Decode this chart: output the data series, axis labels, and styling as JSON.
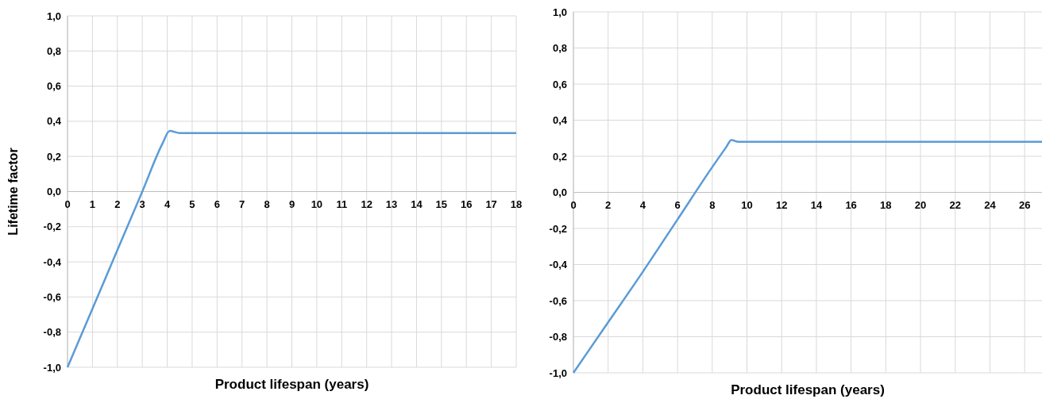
{
  "chart_data": [
    {
      "type": "line",
      "xlabel": "Product lifespan (years)",
      "ylabel": "Lifetime factor",
      "xlim": [
        0,
        18
      ],
      "ylim": [
        -1,
        1
      ],
      "xticks": [
        0,
        1,
        2,
        3,
        4,
        5,
        6,
        7,
        8,
        9,
        10,
        11,
        12,
        13,
        14,
        15,
        16,
        17,
        18
      ],
      "yticks": [
        {
          "value": -1,
          "label": "-1,0"
        },
        {
          "value": -0.8,
          "label": "-0,8"
        },
        {
          "value": -0.6,
          "label": "-0,6"
        },
        {
          "value": -0.4,
          "label": "-0,4"
        },
        {
          "value": -0.2,
          "label": "-0,2"
        },
        {
          "value": 0,
          "label": "0,0"
        },
        {
          "value": 0.2,
          "label": "0,2"
        },
        {
          "value": 0.4,
          "label": "0,4"
        },
        {
          "value": 0.6,
          "label": "0,6"
        },
        {
          "value": 0.8,
          "label": "0,8"
        },
        {
          "value": 1,
          "label": "1,0"
        }
      ],
      "grid": true,
      "marker": "none",
      "line_style": "solid",
      "series": [
        {
          "color": "#5b9bd5",
          "x": [
            0,
            1,
            2,
            3,
            3.8,
            4.1,
            4.5,
            10,
            18
          ],
          "values": [
            -1,
            -0.667,
            -0.333,
            0,
            0.27,
            0.345,
            0.333,
            0.333,
            0.333
          ]
        }
      ]
    },
    {
      "type": "line",
      "xlabel": "Product lifespan (years)",
      "xlim": [
        0,
        27
      ],
      "ylim": [
        -1,
        1
      ],
      "xticks": [
        0,
        2,
        4,
        6,
        8,
        10,
        12,
        14,
        16,
        18,
        20,
        22,
        24,
        26
      ],
      "yticks": [
        {
          "value": -1,
          "label": "-1,0"
        },
        {
          "value": -0.8,
          "label": "-0,8"
        },
        {
          "value": -0.6,
          "label": "-0,6"
        },
        {
          "value": -0.4,
          "label": "-0,4"
        },
        {
          "value": -0.2,
          "label": "-0,2"
        },
        {
          "value": 0,
          "label": "0,0"
        },
        {
          "value": 0.2,
          "label": "0,2"
        },
        {
          "value": 0.4,
          "label": "0,4"
        },
        {
          "value": 0.6,
          "label": "0,6"
        },
        {
          "value": 0.8,
          "label": "0,8"
        },
        {
          "value": 1,
          "label": "1,0"
        }
      ],
      "grid": true,
      "marker": "none",
      "line_style": "solid",
      "series": [
        {
          "color": "#5b9bd5",
          "x": [
            0,
            2,
            4,
            6,
            8,
            8.8,
            9.1,
            9.5,
            18,
            27
          ],
          "values": [
            -1,
            -0.72,
            -0.44,
            -0.15,
            0.14,
            0.25,
            0.29,
            0.28,
            0.28,
            0.28
          ]
        }
      ]
    }
  ]
}
